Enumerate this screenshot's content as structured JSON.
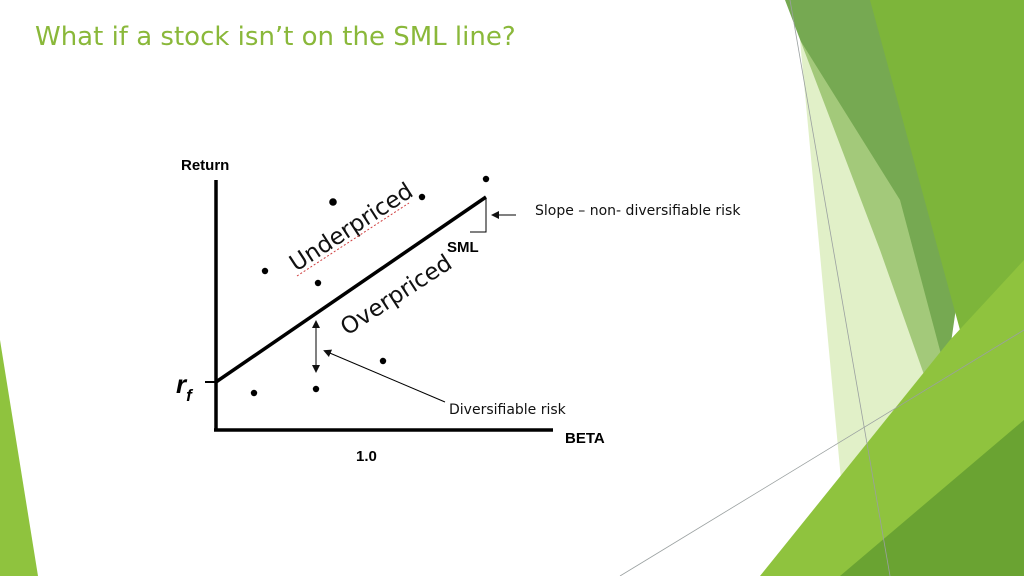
{
  "slide": {
    "title": "What if a stock isn’t on the SML line?"
  },
  "diagram": {
    "y_axis_label": "Return",
    "x_axis_label": "BETA",
    "x_tick_label": "1.0",
    "intercept_label": "r",
    "intercept_subscript": "f",
    "line_label": "SML",
    "region_above": "Underpriced",
    "region_below": "Overpriced",
    "slope_annotation": "Slope – non- diversifiable risk",
    "vertical_gap_annotation": "Diversifiable risk"
  },
  "theme": {
    "title_color": "#8ab83a",
    "accent_dark": "#5e8f2e",
    "accent_mid": "#7db53a",
    "accent_light": "#c8e39a"
  }
}
